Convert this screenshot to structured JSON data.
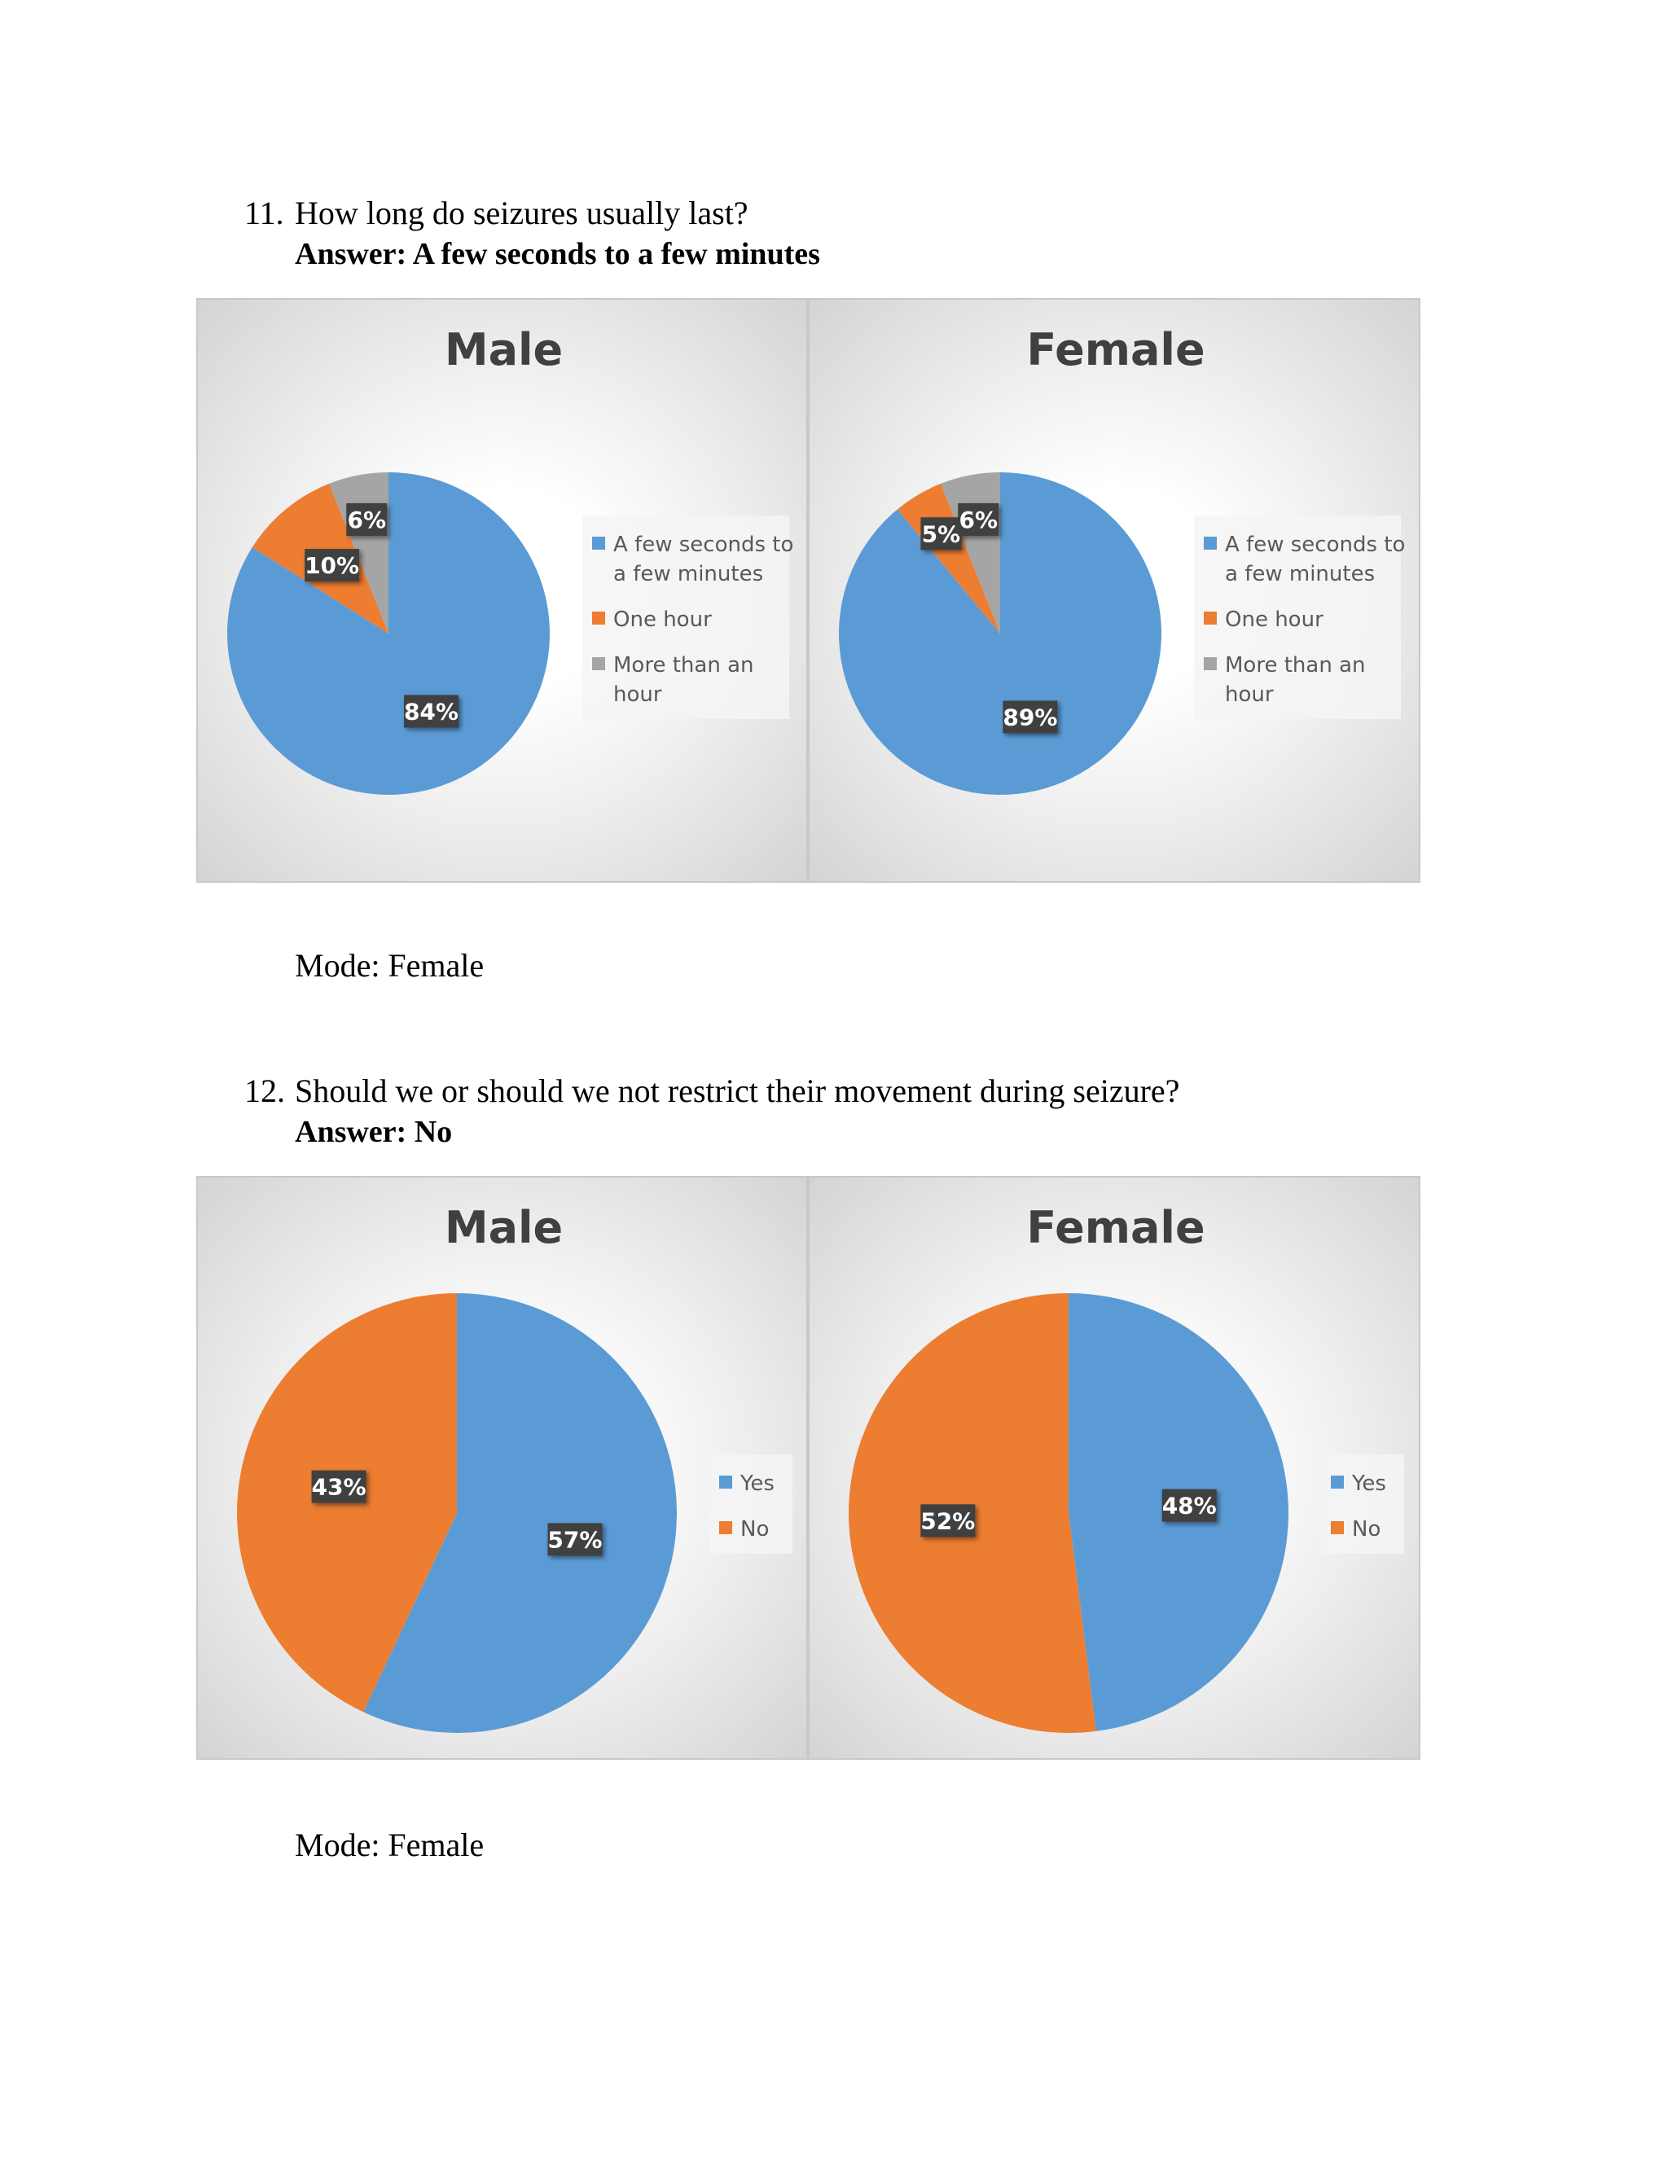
{
  "questions": [
    {
      "number": "11.",
      "text": "How long do seizures usually last?",
      "answer": "Answer:  A few seconds to a few minutes",
      "mode": "Mode: Female"
    },
    {
      "number": "12.",
      "text": "Should we or should we not restrict their movement during seizure?",
      "answer": "Answer:  No",
      "mode": "Mode: Female"
    }
  ],
  "colors": {
    "blue": "#5b9bd5",
    "orange": "#ed7d31",
    "gray": "#a5a5a5"
  },
  "chart_data": [
    {
      "type": "pie",
      "title": "Male",
      "categories": [
        "A few seconds to a few minutes",
        "One hour",
        "More than an hour"
      ],
      "legend_lines": [
        [
          "A few seconds to",
          "a few minutes"
        ],
        [
          "One hour"
        ],
        [
          "More than an",
          "hour"
        ]
      ],
      "values": [
        84,
        10,
        6
      ],
      "labels": [
        "84%",
        "10%",
        "6%"
      ],
      "legend_position": "right"
    },
    {
      "type": "pie",
      "title": "Female",
      "categories": [
        "A few seconds to a few minutes",
        "One hour",
        "More than an hour"
      ],
      "legend_lines": [
        [
          "A few seconds to",
          "a few minutes"
        ],
        [
          "One hour"
        ],
        [
          "More than an",
          "hour"
        ]
      ],
      "values": [
        89,
        5,
        6
      ],
      "labels": [
        "89%",
        "5%",
        "6%"
      ],
      "legend_position": "right"
    },
    {
      "type": "pie",
      "title": "Male",
      "categories": [
        "Yes",
        "No"
      ],
      "legend_lines": [
        [
          "Yes"
        ],
        [
          "No"
        ]
      ],
      "values": [
        57,
        43
      ],
      "labels": [
        "57%",
        "43%"
      ],
      "legend_position": "right"
    },
    {
      "type": "pie",
      "title": "Female",
      "categories": [
        "Yes",
        "No"
      ],
      "legend_lines": [
        [
          "Yes"
        ],
        [
          "No"
        ]
      ],
      "values": [
        48,
        52
      ],
      "labels": [
        "48%",
        "52%"
      ],
      "legend_position": "right"
    }
  ]
}
